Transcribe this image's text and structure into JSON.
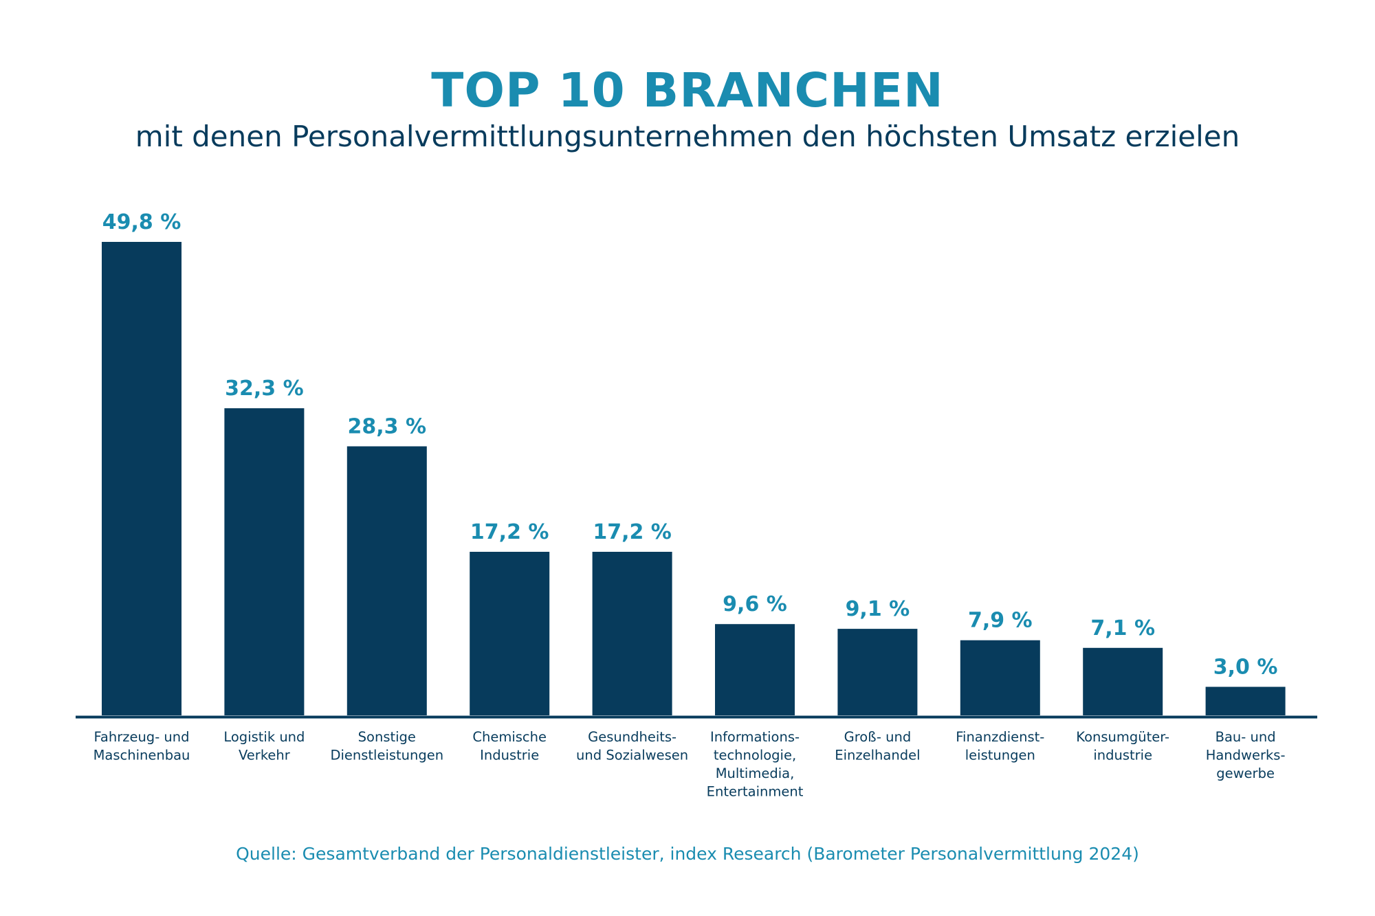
{
  "title": "TOP 10 BRANCHEN",
  "subtitle": "mit denen Personalvermittlungsunternehmen den höchsten Umsatz erzielen",
  "source": "Quelle: Gesamtverband der Personaldienstleister, index Research (Barometer Personalvermittlung 2024)",
  "colors": {
    "bar": "#073b5c",
    "value_label": "#1a8cb0",
    "title": "#1a8cb0",
    "subtitle": "#073b5c",
    "axis": "#073b5c",
    "category_label": "#073b5c"
  },
  "chart_data": {
    "type": "bar",
    "title": "TOP 10 BRANCHEN",
    "subtitle": "mit denen Personalvermittlungsunternehmen den höchsten Umsatz erzielen",
    "xlabel": "",
    "ylabel": "",
    "unit": "%",
    "grid": false,
    "legend": "none",
    "ylim": [
      0,
      49.8
    ],
    "categories": [
      [
        "Fahrzeug- und",
        "Maschinenbau"
      ],
      [
        "Logistik und",
        "Verkehr"
      ],
      [
        "Sonstige",
        "Dienstleistungen"
      ],
      [
        "Chemische",
        "Industrie"
      ],
      [
        "Gesundheits-",
        "und Sozialwesen"
      ],
      [
        "Informations-",
        "technologie,",
        "Multimedia,",
        "Entertainment"
      ],
      [
        "Groß- und",
        "Einzelhandel"
      ],
      [
        "Finanzdienst-",
        "leistungen"
      ],
      [
        "Konsumgüter-",
        "industrie"
      ],
      [
        "Bau- und",
        "Handwerks-",
        "gewerbe"
      ]
    ],
    "values": [
      49.8,
      32.3,
      28.3,
      17.2,
      17.2,
      9.6,
      9.1,
      7.9,
      7.1,
      3.0
    ],
    "value_labels": [
      "49,8 %",
      "32,3 %",
      "28,3 %",
      "17,2 %",
      "17,2 %",
      "9,6 %",
      "9,1 %",
      "7,9 %",
      "7,1 %",
      "3,0 %"
    ]
  }
}
